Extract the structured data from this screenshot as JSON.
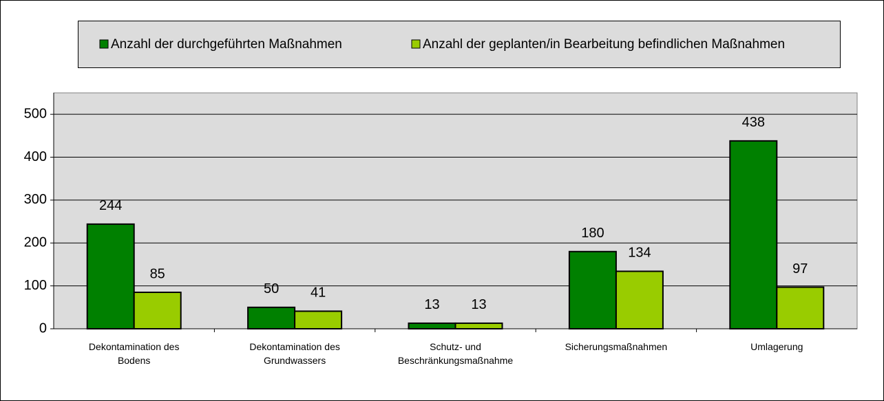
{
  "chart_data": {
    "type": "bar",
    "categories": [
      "Dekontamination des Bodens",
      "Dekontamination des Grundwassers",
      "Schutz- und Beschränkungsmaßnahme",
      "Sicherungsmaßnahmen",
      "Umlagerung"
    ],
    "series": [
      {
        "name": "Anzahl der durchgeführten Maßnahmen",
        "color": "#008000",
        "values": [
          244,
          50,
          13,
          180,
          438
        ]
      },
      {
        "name": "Anzahl der geplanten/in Bearbeitung befindlichen Maßnahmen",
        "color": "#99cc00",
        "values": [
          85,
          41,
          13,
          134,
          97
        ]
      }
    ],
    "ylim": [
      0,
      550
    ],
    "yticks": [
      0,
      100,
      200,
      300,
      400,
      500
    ],
    "grid": true,
    "data_labels": true
  }
}
